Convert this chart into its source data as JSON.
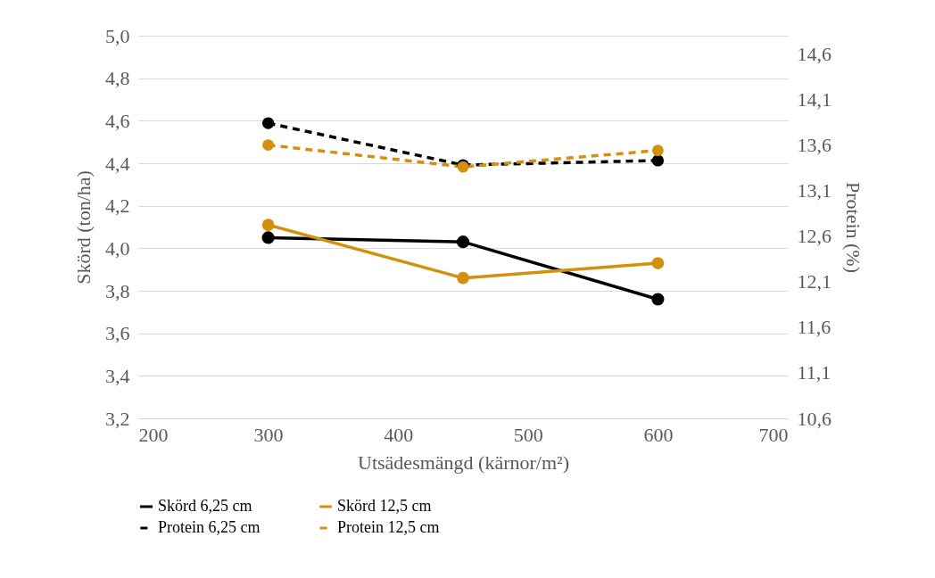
{
  "chart_data": {
    "type": "line",
    "xlabel": "Utsädesmängd (kärnor/m²)",
    "ylabel": "Skörd (ton/ha)",
    "y2label": "Protein (%)",
    "x": [
      300,
      450,
      600
    ],
    "xlim": [
      200,
      700
    ],
    "xticks": [
      200,
      300,
      400,
      500,
      600,
      700
    ],
    "ylim": [
      3.2,
      5.0
    ],
    "yticks": [
      {
        "value": 3.2,
        "label": "3,2"
      },
      {
        "value": 3.4,
        "label": "3,4"
      },
      {
        "value": 3.6,
        "label": "3,6"
      },
      {
        "value": 3.8,
        "label": "3,8"
      },
      {
        "value": 4.0,
        "label": "4,0"
      },
      {
        "value": 4.2,
        "label": "4,2"
      },
      {
        "value": 4.4,
        "label": "4,4"
      },
      {
        "value": 4.6,
        "label": "4,6"
      },
      {
        "value": 4.8,
        "label": "4,8"
      },
      {
        "value": 5.0,
        "label": "5,0"
      }
    ],
    "y2lim": [
      10.6,
      14.8
    ],
    "y2ticks": [
      {
        "value": 10.6,
        "label": "10,6"
      },
      {
        "value": 11.1,
        "label": "11,1"
      },
      {
        "value": 11.6,
        "label": "11,6"
      },
      {
        "value": 12.1,
        "label": "12,1"
      },
      {
        "value": 12.6,
        "label": "12,6"
      },
      {
        "value": 13.1,
        "label": "13,1"
      },
      {
        "value": 13.6,
        "label": "13,6"
      },
      {
        "value": 14.1,
        "label": "14,1"
      },
      {
        "value": 14.6,
        "label": "14,6"
      }
    ],
    "grid": "y",
    "legend": "bottom",
    "marker": "circle",
    "series": [
      {
        "name": "Skörd 6,25 cm",
        "color": "#000000",
        "line_style": "solid",
        "values": [
          4.05,
          4.03,
          3.76
        ]
      },
      {
        "name": "Skörd 12,5 cm",
        "color": "#d4900a",
        "line_style": "solid",
        "values": [
          4.11,
          3.86,
          3.93
        ]
      },
      {
        "name": "Protein 6,25 cm",
        "color": "#000000",
        "line_style": "dashed",
        "axis": "y2",
        "values": [
          13.84,
          13.38,
          13.43
        ]
      },
      {
        "name": "Protein 12,5 cm",
        "color": "#d4900a",
        "line_style": "dashed",
        "axis": "y2",
        "values": [
          13.6,
          13.36,
          13.54
        ]
      }
    ]
  }
}
